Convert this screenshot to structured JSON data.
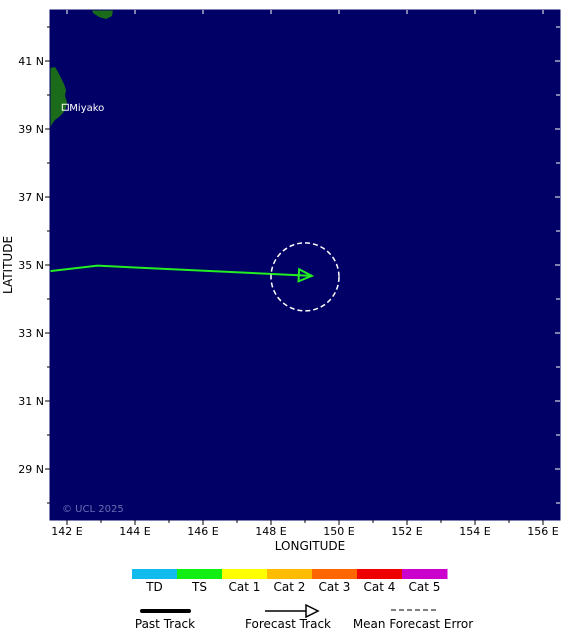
{
  "map": {
    "lon_range": [
      141.5,
      156.5
    ],
    "lat_range": [
      27.5,
      42.5
    ],
    "lon_ticks": [
      {
        "value": 142,
        "label": "142 E"
      },
      {
        "value": 144,
        "label": "144 E"
      },
      {
        "value": 146,
        "label": "146 E"
      },
      {
        "value": 148,
        "label": "148 E"
      },
      {
        "value": 150,
        "label": "150 E"
      },
      {
        "value": 152,
        "label": "152 E"
      },
      {
        "value": 154,
        "label": "154 E"
      },
      {
        "value": 156,
        "label": "156 E"
      }
    ],
    "lat_ticks": [
      {
        "value": 29,
        "label": "29 N"
      },
      {
        "value": 31,
        "label": "31 N"
      },
      {
        "value": 33,
        "label": "33 N"
      },
      {
        "value": 35,
        "label": "35 N"
      },
      {
        "value": 37,
        "label": "37 N"
      },
      {
        "value": 39,
        "label": "39 N"
      },
      {
        "value": 41,
        "label": "41 N"
      }
    ],
    "xlabel": "LONGITUDE",
    "ylabel": "LATITUDE",
    "copyright": "© UCL 2025",
    "city": {
      "name": "Miyako",
      "lon": 141.95,
      "lat": 39.64
    },
    "colors": {
      "ocean": "#000066",
      "land": "#1a6b1a",
      "track": "#22ee22",
      "error_circle": "#ffffff"
    }
  },
  "track": {
    "forecast_points": [
      {
        "lon": 141.5,
        "lat": 34.82
      },
      {
        "lon": 142.9,
        "lat": 34.98
      },
      {
        "lon": 149.2,
        "lat": 34.68
      }
    ],
    "error_circle": {
      "lon": 149.0,
      "lat": 34.65,
      "radius_deg": 1.0
    }
  },
  "legend": {
    "categories": [
      {
        "label": "TD",
        "color": "#11bbee"
      },
      {
        "label": "TS",
        "color": "#11ee11"
      },
      {
        "label": "Cat 1",
        "color": "#ffff00"
      },
      {
        "label": "Cat 2",
        "color": "#ffbb00"
      },
      {
        "label": "Cat 3",
        "color": "#ff6600"
      },
      {
        "label": "Cat 4",
        "color": "#ee0000"
      },
      {
        "label": "Cat 5",
        "color": "#cc00cc"
      }
    ],
    "past_track": "Past Track",
    "forecast_track": "Forecast Track",
    "mean_error": "Mean Forecast Error"
  }
}
